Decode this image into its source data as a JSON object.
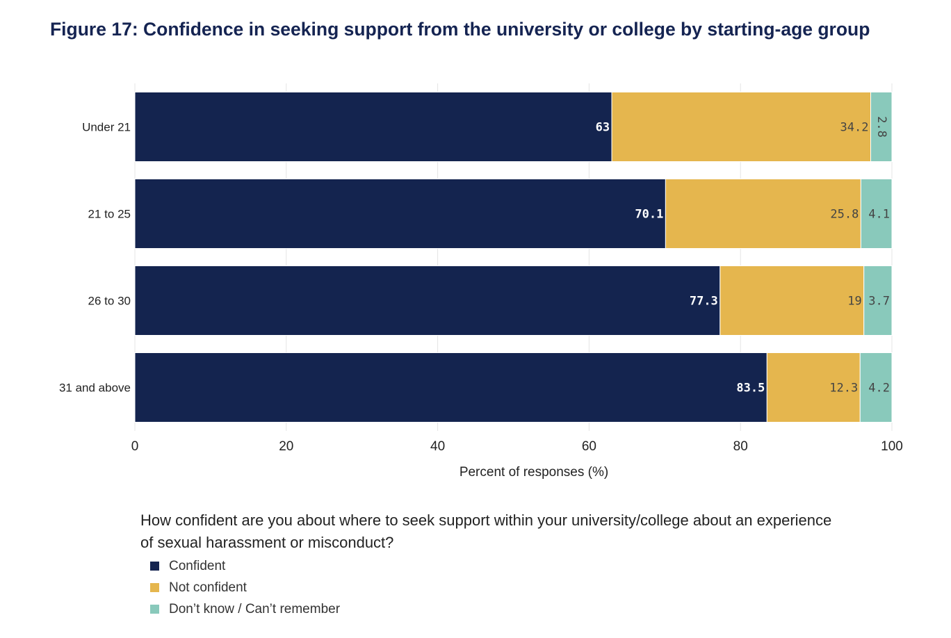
{
  "title": "Figure 17: Confidence in seeking support from the university or college by starting-age group",
  "chart_data": {
    "type": "bar",
    "orientation": "horizontal",
    "stacked": true,
    "categories": [
      "Under 21",
      "21 to 25",
      "26 to 30",
      "31 and above"
    ],
    "series": [
      {
        "name": "Confident",
        "color": "#14244f",
        "values": [
          63,
          70.1,
          77.3,
          83.5
        ]
      },
      {
        "name": "Not confident",
        "color": "#e5b64e",
        "values": [
          34.2,
          25.8,
          19,
          12.3
        ]
      },
      {
        "name": "Don’t know / Can’t remember",
        "color": "#89c9bb",
        "values": [
          2.8,
          4.1,
          3.7,
          4.2
        ]
      }
    ],
    "xlabel": "Percent of responses (%)",
    "ylabel": "",
    "xlim": [
      0,
      100
    ],
    "xticks": [
      "0",
      "20",
      "40",
      "60",
      "80",
      "100"
    ],
    "grid": true,
    "legend_position": "bottom"
  },
  "legend": {
    "title": "How confident are you about where to seek support within your university/college about an experience of sexual harassment or misconduct?",
    "items": [
      {
        "label": "Confident",
        "color": "#14244f"
      },
      {
        "label": "Not confident",
        "color": "#e5b64e"
      },
      {
        "label": "Don’t know / Can’t remember",
        "color": "#89c9bb"
      }
    ]
  }
}
